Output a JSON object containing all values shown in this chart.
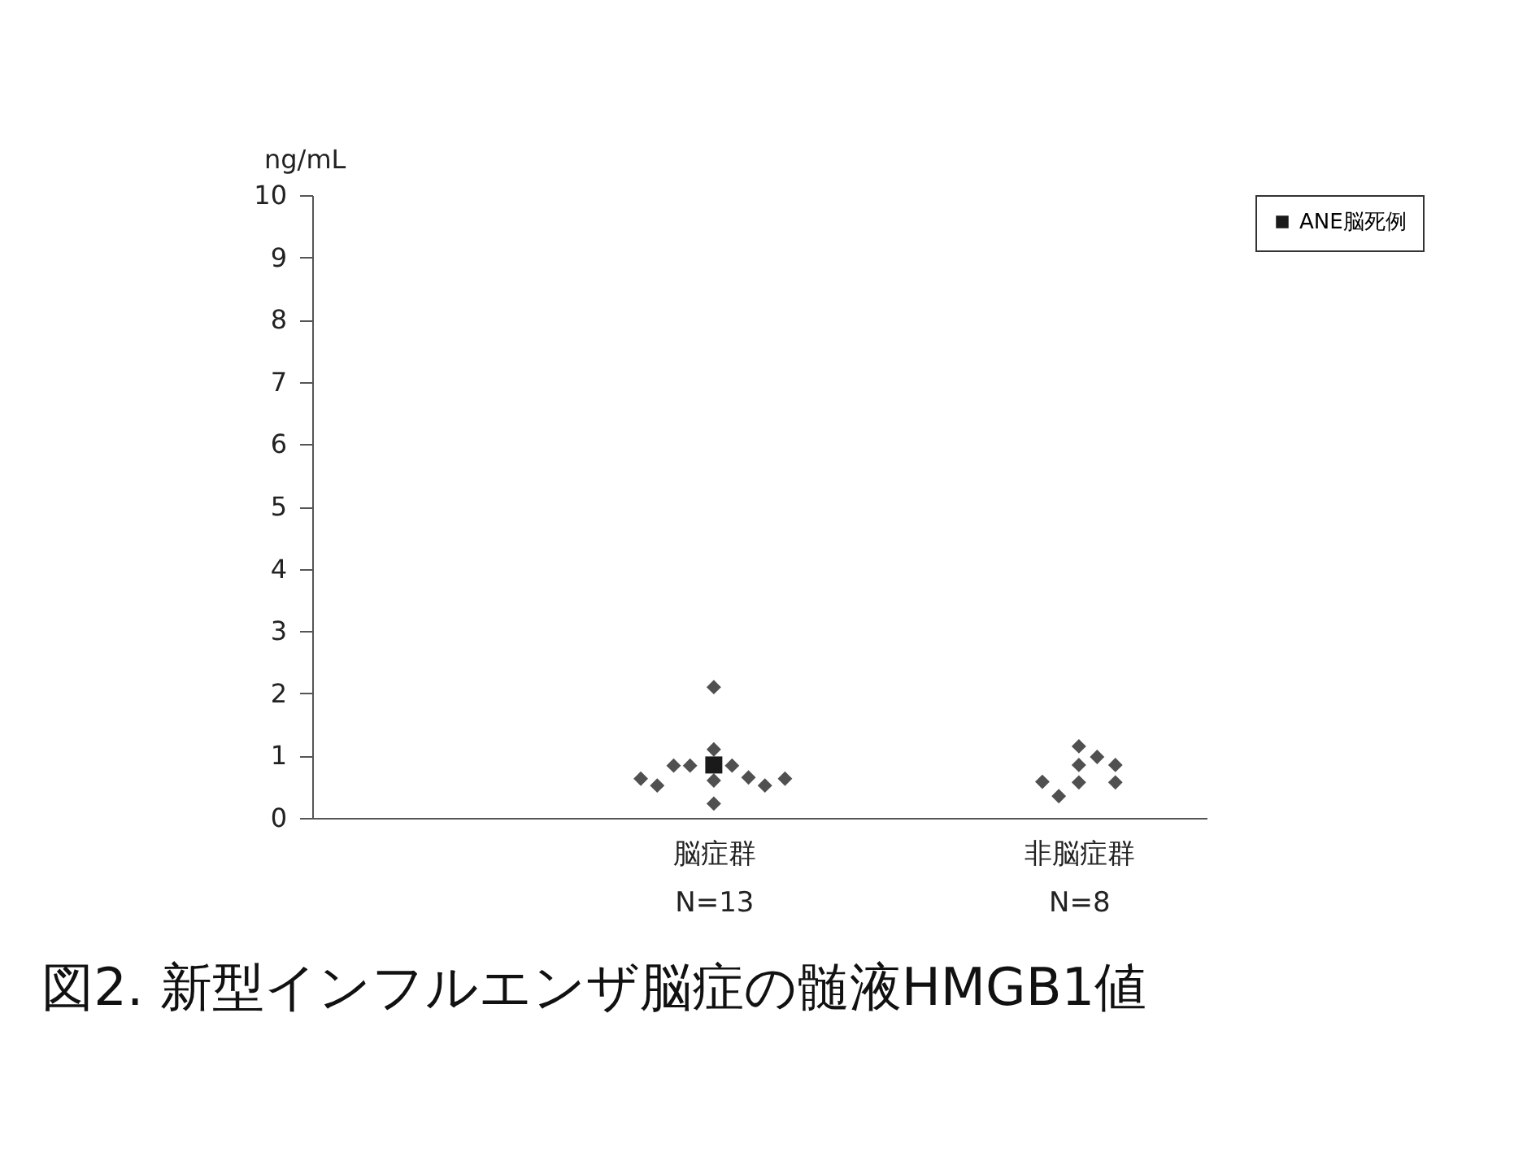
{
  "chart_data": {
    "type": "scatter",
    "title": "図2. 新型インフルエンザ脳症の髄液HMGB1値",
    "ylabel": "ng/mL",
    "categories": [
      "脳症群\nN=13",
      "非脳症群\nN=8"
    ],
    "series": [
      {
        "color": "#505050",
        "marker": "diamond",
        "x": [
          "脳症群\nN=13",
          "脳症群\nN=13",
          "脳症群\nN=13",
          "脳症群\nN=13",
          "脳症群\nN=13",
          "脳症群\nN=13",
          "脳症群\nN=13",
          "脳症群\nN=13",
          "脳症群\nN=13",
          "脳症群\nN=13",
          "脳症群\nN=13",
          "脳症群\nN=13",
          "非脳症群\nN=8",
          "非脳症群\nN=8",
          "非脳症群\nN=8",
          "非脳症群\nN=8",
          "非脳症群\nN=8",
          "非脳症群\nN=8",
          "非脳症群\nN=8",
          "非脳症群\nN=8"
        ],
        "values": [
          0.63,
          0.52,
          0.84,
          0.84,
          2.1,
          1.1,
          0.6,
          0.23,
          0.84,
          0.65,
          0.52,
          0.63,
          0.58,
          0.35,
          1.15,
          0.85,
          0.57,
          0.98,
          0.85,
          0.57
        ]
      },
      {
        "name": "ANE脳死例",
        "color": "#1a1a1a",
        "marker": "square",
        "x": [
          "脳症群\nN=13"
        ],
        "values": [
          0.85
        ]
      }
    ],
    "ylim": [
      0,
      10
    ],
    "yticks": [
      0,
      1,
      2,
      3,
      4,
      5,
      6,
      7,
      8,
      9,
      10
    ],
    "grid": false,
    "legend": "right"
  }
}
